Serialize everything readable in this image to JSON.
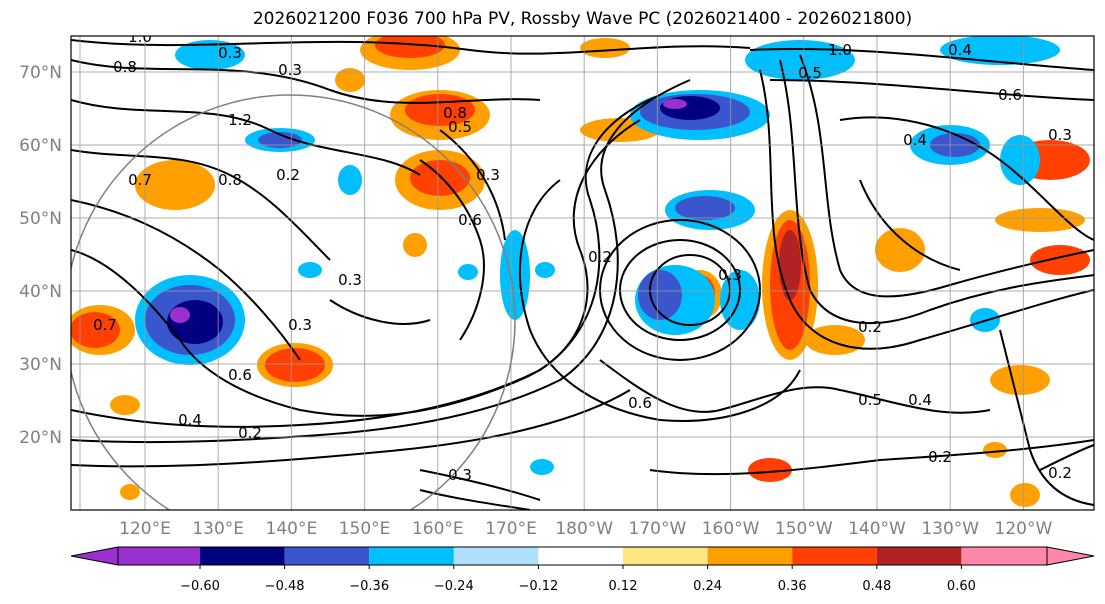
{
  "title": "2026021200 F036 700 hPa PV, Rossby Wave PC (2026021400 - 2026021800)",
  "map": {
    "lat_labels": [
      "70°N",
      "60°N",
      "50°N",
      "40°N",
      "30°N",
      "20°N"
    ],
    "lon_labels": [
      "120°E",
      "130°E",
      "140°E",
      "150°E",
      "160°E",
      "170°E",
      "180°W",
      "170°W",
      "160°W",
      "150°W",
      "140°W",
      "130°W",
      "120°W"
    ],
    "contour_labels": [
      "0.3",
      "0.8",
      "1.0",
      "0.3",
      "1.0",
      "0.4",
      "0.5",
      "0.6",
      "1.2",
      "0.8",
      "0.5",
      "0.7",
      "0.2",
      "0.8",
      "0.3",
      "0.4",
      "0.6",
      "0.3",
      "0.3",
      "0.3",
      "0.7",
      "0.2",
      "0.3",
      "0.6",
      "0.4",
      "0.2",
      "0.2",
      "0.3",
      "0.6",
      "0.5",
      "0.4",
      "0.2",
      "0.2"
    ]
  },
  "colorbar": {
    "ticks": [
      "−0.60",
      "−0.48",
      "−0.36",
      "−0.24",
      "−0.12",
      "0.12",
      "0.24",
      "0.36",
      "0.48",
      "0.60"
    ],
    "colors": [
      "#9a30d0",
      "#000080",
      "#3a56cc",
      "#00bfff",
      "#b0e0ff",
      "#ffffff",
      "#ffe680",
      "#ffa000",
      "#ff4000",
      "#b22222",
      "#ff88aa"
    ]
  }
}
